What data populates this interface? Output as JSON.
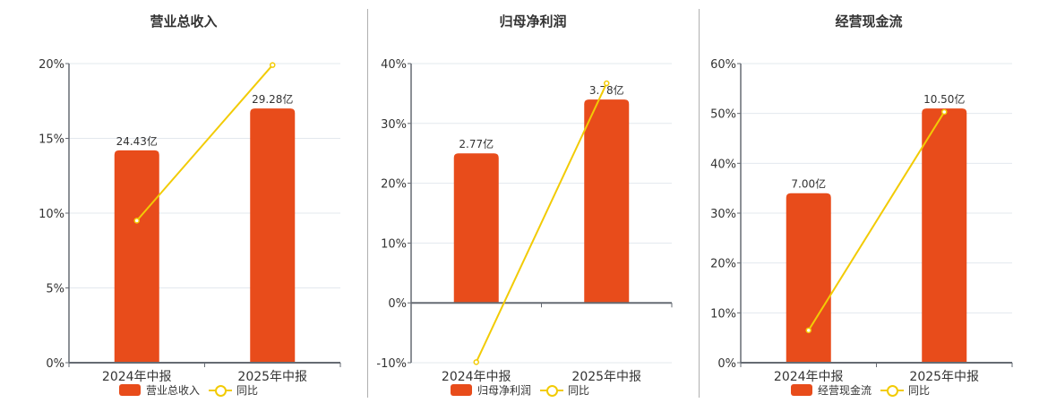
{
  "colors": {
    "bar": "#e84c1b",
    "line": "#f2cb05",
    "grid": "#e3e8ee",
    "axis": "#666b73",
    "text": "#333333"
  },
  "charts": [
    {
      "title": "营业总收入",
      "legend_bar": "营业总收入",
      "legend_line": "同比"
    },
    {
      "title": "归母净利润",
      "legend_bar": "归母净利润",
      "legend_line": "同比"
    },
    {
      "title": "经营现金流",
      "legend_bar": "经营现金流",
      "legend_line": "同比"
    }
  ],
  "chart_data": [
    {
      "type": "bar+line",
      "title": "营业总收入",
      "categories": [
        "2024年中报",
        "2025年中报"
      ],
      "series": [
        {
          "name": "营业总收入",
          "type": "bar",
          "labels": [
            "24.43亿",
            "29.28亿"
          ],
          "values_pct_axis": [
            14.2,
            17.0
          ]
        },
        {
          "name": "同比",
          "type": "line",
          "values": [
            9.5,
            19.9
          ]
        }
      ],
      "yticks": [
        "0%",
        "5%",
        "10%",
        "15%",
        "20%"
      ],
      "ylim": [
        0,
        20
      ],
      "legend_position": "bottom"
    },
    {
      "type": "bar+line",
      "title": "归母净利润",
      "categories": [
        "2024年中报",
        "2025年中报"
      ],
      "series": [
        {
          "name": "归母净利润",
          "type": "bar",
          "labels": [
            "2.77亿",
            "3.78亿"
          ],
          "values_pct_axis": [
            25.0,
            34.0
          ]
        },
        {
          "name": "同比",
          "type": "line",
          "values": [
            -9.9,
            36.7
          ]
        }
      ],
      "yticks": [
        "-10%",
        "0%",
        "10%",
        "20%",
        "30%",
        "40%"
      ],
      "ylim": [
        -10,
        40
      ],
      "legend_position": "bottom"
    },
    {
      "type": "bar+line",
      "title": "经营现金流",
      "categories": [
        "2024年中报",
        "2025年中报"
      ],
      "series": [
        {
          "name": "经营现金流",
          "type": "bar",
          "labels": [
            "7.00亿",
            "10.50亿"
          ],
          "values_pct_axis": [
            34.0,
            51.0
          ]
        },
        {
          "name": "同比",
          "type": "line",
          "values": [
            6.5,
            50.3
          ]
        }
      ],
      "yticks": [
        "0%",
        "10%",
        "20%",
        "30%",
        "40%",
        "50%",
        "60%"
      ],
      "ylim": [
        0,
        60
      ],
      "legend_position": "bottom"
    }
  ]
}
